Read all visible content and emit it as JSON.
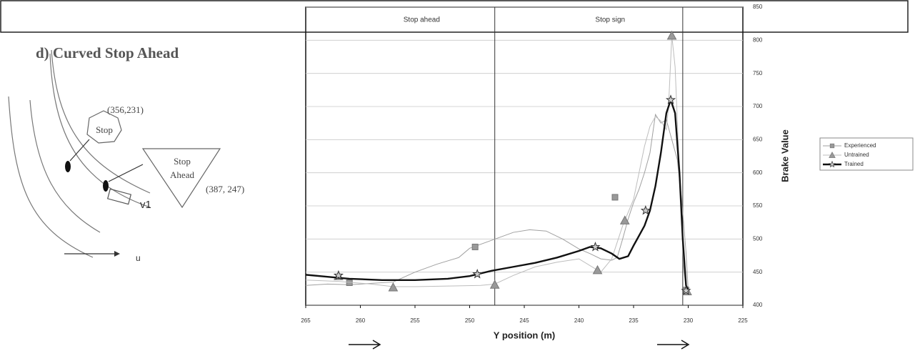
{
  "diagram": {
    "title": "d) Curved Stop Ahead",
    "stop_coord": "(356,231)",
    "stop_sign": "Stop",
    "ahead_sign_line1": "Stop",
    "ahead_sign_line2": "Ahead",
    "ahead_coord": "(387,  247)",
    "vehicle": "v1",
    "axis_label": "u"
  },
  "chart_data": {
    "type": "line",
    "x_label": "Y position (m)",
    "y_label": "Brake Value",
    "xlim": [
      265,
      225
    ],
    "xticks": [
      265,
      260,
      255,
      250,
      245,
      240,
      235,
      230,
      225
    ],
    "ylim": [
      400,
      850
    ],
    "yticks": [
      400,
      450,
      500,
      550,
      600,
      650,
      700,
      750,
      800,
      850
    ],
    "grid": true,
    "vlines": [
      247.7,
      230.5
    ],
    "region_labels": [
      "Stop ahead",
      "Stop sign"
    ],
    "series": [
      {
        "name": "Experienced",
        "color": "#a0a0a0",
        "marker": "square",
        "x": [
          265,
          263,
          261,
          259,
          257,
          255,
          253,
          251,
          250,
          248,
          246,
          244.5,
          243,
          241.5,
          240,
          239,
          238,
          237,
          236.5,
          236,
          235.5,
          235,
          234.5,
          234,
          233.5,
          233,
          232.5,
          232,
          231.5,
          231,
          230.6,
          230.2,
          230
        ],
        "values": [
          430,
          432,
          431,
          433,
          435,
          450,
          462,
          472,
          486,
          498,
          510,
          514,
          512,
          500,
          485,
          478,
          470,
          468,
          472,
          500,
          530,
          555,
          575,
          600,
          630,
          688,
          675,
          680,
          650,
          620,
          560,
          480,
          422
        ],
        "markers": {
          "x": [
            261,
            249.5,
            236.7,
            230.2
          ],
          "values": [
            434,
            488,
            563,
            423
          ]
        }
      },
      {
        "name": "Untrained",
        "color": "#bdbdbd",
        "marker": "triangle",
        "x": [
          265,
          262,
          259,
          257,
          255,
          252,
          249,
          247.7,
          246,
          244,
          242,
          240,
          238.5,
          238,
          237,
          236,
          235,
          234.5,
          234,
          233.5,
          233,
          232.5,
          232,
          231.8,
          231.5,
          231.2,
          230.8,
          230.4,
          230.1
        ],
        "values": [
          438,
          436,
          432,
          428,
          428,
          429,
          430,
          432,
          445,
          458,
          465,
          470,
          455,
          450,
          470,
          520,
          560,
          600,
          640,
          670,
          685,
          678,
          665,
          700,
          807,
          760,
          600,
          450,
          421
        ],
        "markers": {
          "x": [
            262,
            257,
            247.7,
            238.3,
            235.8,
            231.5,
            230.1
          ],
          "values": [
            444,
            427,
            431,
            453,
            528,
            807,
            421
          ]
        }
      },
      {
        "name": "Trained",
        "color": "#111111",
        "marker": "star",
        "x": [
          265,
          263,
          261,
          258,
          255,
          252,
          250,
          248,
          246,
          244,
          242,
          240,
          239,
          238,
          237,
          236.3,
          235.5,
          235,
          234,
          233.5,
          233,
          232.5,
          232,
          231.6,
          231.2,
          230.8,
          230.5,
          230.2,
          230
        ],
        "values": [
          446,
          443,
          440,
          438,
          438,
          440,
          444,
          452,
          458,
          464,
          472,
          482,
          488,
          486,
          478,
          470,
          474,
          490,
          520,
          543,
          580,
          630,
          690,
          710,
          690,
          600,
          500,
          430,
          422
        ],
        "markers": {
          "x": [
            262,
            249.3,
            238.5,
            233.9,
            231.6,
            230.2
          ],
          "values": [
            445,
            447,
            488,
            543,
            710,
            422
          ]
        }
      }
    ]
  }
}
